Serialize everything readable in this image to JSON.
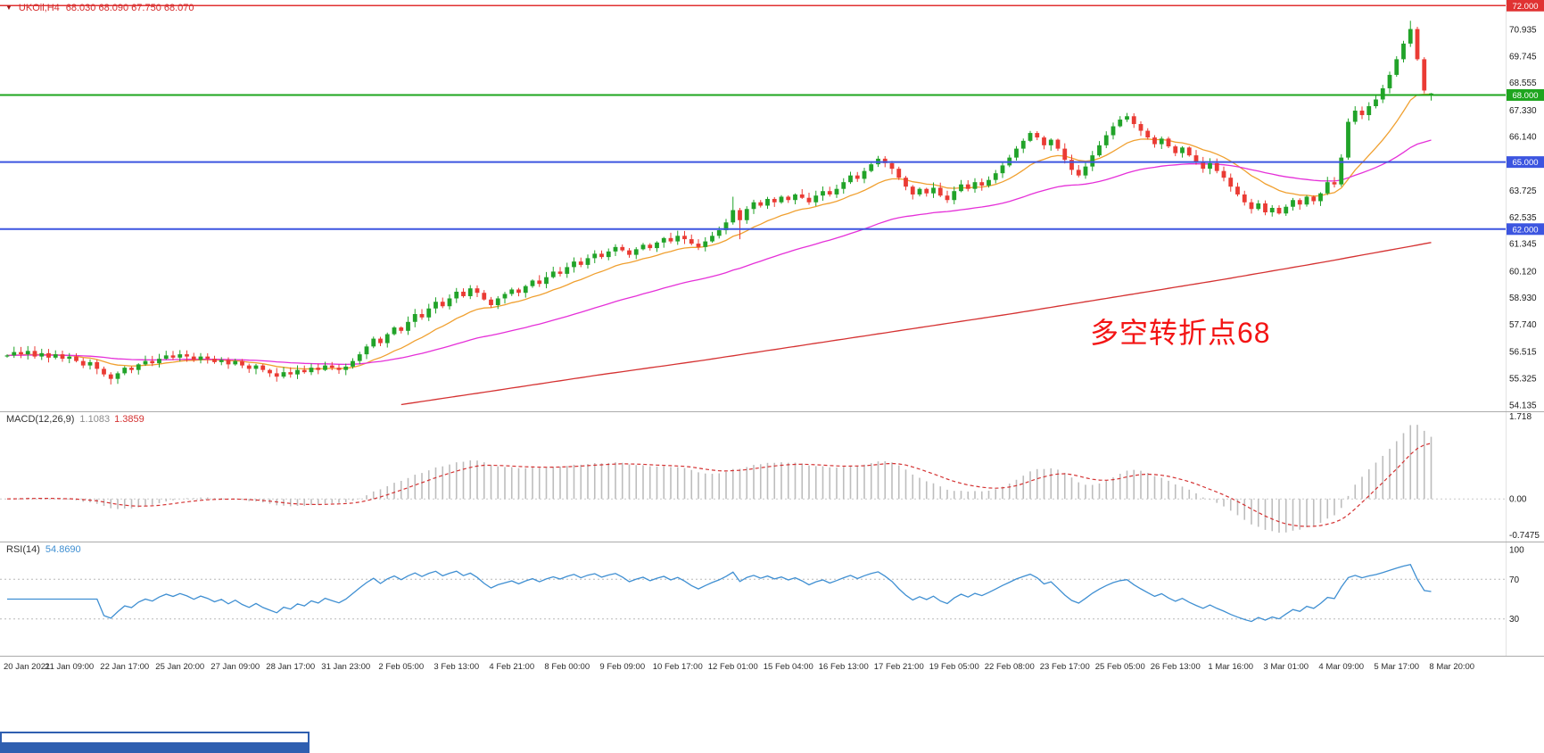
{
  "chart": {
    "title": {
      "marker": "▼",
      "symbol": "UKOil,H4",
      "values": "68.030 68.090 67.750 68.070"
    },
    "annotation": {
      "text": "多空转折点68",
      "color": "#f31414"
    }
  },
  "macd_panel": {
    "label": "MACD(12,26,9)",
    "value_main": "1.1083",
    "value_signal": "1.3859"
  },
  "rsi_panel": {
    "label": "RSI(14)",
    "value": "54.8690"
  },
  "chart_data": {
    "type": "candlestick",
    "symbol": "UKOil",
    "timeframe": "H4",
    "x_labels": [
      "20 Jan 2021",
      "21 Jan 09:00",
      "22 Jan 17:00",
      "25 Jan 20:00",
      "27 Jan 09:00",
      "28 Jan 17:00",
      "31 Jan 23:00",
      "2 Feb 05:00",
      "3 Feb 13:00",
      "4 Feb 21:00",
      "8 Feb 00:00",
      "9 Feb 09:00",
      "10 Feb 17:00",
      "12 Feb 01:00",
      "15 Feb 04:00",
      "16 Feb 13:00",
      "17 Feb 21:00",
      "19 Feb 05:00",
      "22 Feb 08:00",
      "23 Feb 17:00",
      "25 Feb 05:00",
      "26 Feb 13:00",
      "1 Mar 16:00",
      "3 Mar 01:00",
      "4 Mar 09:00",
      "5 Mar 17:00",
      "8 Mar 20:00"
    ],
    "bars_per_label": 8,
    "first_label_bar": 1,
    "price_axis": {
      "range": {
        "min": 53.85,
        "max": 72.05
      },
      "ticks": [
        "70.935",
        "69.745",
        "68.555",
        "67.330",
        "66.140",
        "63.725",
        "62.535",
        "61.345",
        "60.120",
        "58.930",
        "57.740",
        "56.515",
        "55.325",
        "54.135"
      ],
      "lines": [
        {
          "price": 72.0,
          "label": "72.000",
          "color": "#e03232",
          "width": 1.5
        },
        {
          "price": 68.0,
          "label": "68.000",
          "color": "#1ea51e",
          "width": 2
        },
        {
          "price": 65.0,
          "label": "65.000",
          "color": "#3c55e0",
          "width": 2
        },
        {
          "price": 62.0,
          "label": "62.000",
          "color": "#3c55e0",
          "width": 2
        }
      ]
    },
    "candles": {
      "first_open": 56.3,
      "up_color": "#21a329",
      "down_color": "#ea3b34",
      "wick_base": 0.05,
      "wick_var": 0.2,
      "closes": [
        56.35,
        56.5,
        56.4,
        56.55,
        56.3,
        56.45,
        56.25,
        56.4,
        56.2,
        56.3,
        56.1,
        55.9,
        56.05,
        55.75,
        55.5,
        55.3,
        55.55,
        55.8,
        55.7,
        55.95,
        56.1,
        56.0,
        56.2,
        56.35,
        56.25,
        56.4,
        56.3,
        56.15,
        56.3,
        56.2,
        56.05,
        56.15,
        55.95,
        56.1,
        55.9,
        55.75,
        55.9,
        55.7,
        55.55,
        55.4,
        55.6,
        55.5,
        55.7,
        55.6,
        55.8,
        55.7,
        55.9,
        55.8,
        55.7,
        55.85,
        56.1,
        56.4,
        56.75,
        57.1,
        56.9,
        57.3,
        57.6,
        57.45,
        57.85,
        58.2,
        58.05,
        58.45,
        58.75,
        58.55,
        58.9,
        59.2,
        59.0,
        59.35,
        59.15,
        58.85,
        58.6,
        58.9,
        59.1,
        59.3,
        59.15,
        59.45,
        59.7,
        59.55,
        59.85,
        60.1,
        60.0,
        60.3,
        60.55,
        60.4,
        60.7,
        60.9,
        60.75,
        61.0,
        61.2,
        61.05,
        60.85,
        61.1,
        61.3,
        61.15,
        61.4,
        61.6,
        61.45,
        61.7,
        61.55,
        61.35,
        61.2,
        61.45,
        61.7,
        61.95,
        62.3,
        62.85,
        62.4,
        62.9,
        63.2,
        63.05,
        63.35,
        63.2,
        63.45,
        63.3,
        63.55,
        63.4,
        63.2,
        63.5,
        63.7,
        63.55,
        63.8,
        64.1,
        64.4,
        64.25,
        64.6,
        64.9,
        65.15,
        64.95,
        64.7,
        64.3,
        63.9,
        63.55,
        63.8,
        63.6,
        63.85,
        63.5,
        63.3,
        63.7,
        64.0,
        63.8,
        64.1,
        63.95,
        64.2,
        64.5,
        64.85,
        65.2,
        65.6,
        65.95,
        66.3,
        66.1,
        65.75,
        66.0,
        65.6,
        65.1,
        64.65,
        64.4,
        64.8,
        65.3,
        65.75,
        66.2,
        66.6,
        66.9,
        67.05,
        66.7,
        66.4,
        66.1,
        65.8,
        66.05,
        65.7,
        65.4,
        65.65,
        65.3,
        65.0,
        64.7,
        64.95,
        64.6,
        64.3,
        63.9,
        63.55,
        63.2,
        62.9,
        63.15,
        62.75,
        62.95,
        62.7,
        63.0,
        63.3,
        63.1,
        63.45,
        63.25,
        63.6,
        64.1,
        64.0,
        65.2,
        66.8,
        67.3,
        67.1,
        67.5,
        67.8,
        68.3,
        68.9,
        69.6,
        70.3,
        70.95,
        69.6,
        68.2,
        68.07
      ],
      "overrides": {
        "15": [
          55.5,
          55.6,
          55.05,
          55.3
        ],
        "105": [
          62.3,
          63.45,
          62.2,
          62.85
        ],
        "106": [
          62.85,
          62.95,
          61.55,
          62.4
        ],
        "193": [
          64.0,
          65.35,
          63.9,
          65.2
        ],
        "194": [
          65.2,
          66.95,
          65.1,
          66.8
        ],
        "203": [
          70.3,
          71.32,
          70.15,
          70.95
        ],
        "206": [
          68.03,
          68.09,
          67.75,
          68.07
        ]
      }
    },
    "moving_averages": [
      {
        "name": "ma-fast-orange",
        "type": "ema",
        "period": 14,
        "color": "#f0a030"
      },
      {
        "name": "ma-mid-magenta",
        "type": "ema",
        "period": 50,
        "color": "#e530d8"
      },
      {
        "name": "ma-slow-red",
        "type": "points",
        "color": "#d53232",
        "points": [
          [
            57,
            54.15
          ],
          [
            70,
            54.75
          ],
          [
            85,
            55.45
          ],
          [
            100,
            56.1
          ],
          [
            115,
            56.8
          ],
          [
            130,
            57.5
          ],
          [
            145,
            58.2
          ],
          [
            160,
            58.95
          ],
          [
            175,
            59.7
          ],
          [
            190,
            60.5
          ],
          [
            206,
            61.4
          ]
        ]
      }
    ],
    "macd": {
      "fast": 12,
      "slow": 26,
      "signal": 9,
      "current_macd": 1.1083,
      "current_signal": 1.3859,
      "range": {
        "min": -0.85,
        "max": 1.75
      },
      "ticks": [
        {
          "v": 1.718,
          "label": "1.718"
        },
        {
          "v": 0,
          "label": "0.00"
        },
        {
          "v": -0.7475,
          "label": "-0.7475"
        }
      ],
      "hist_color": "#bdbdbd",
      "signal_color": "#d43232"
    },
    "rsi": {
      "period": 14,
      "current": 54.869,
      "range": {
        "min": 0,
        "max": 100
      },
      "ticks": [
        {
          "v": 100,
          "label": "100"
        },
        {
          "v": 70,
          "label": "70"
        },
        {
          "v": 30,
          "label": "30"
        }
      ],
      "levels": [
        70,
        30
      ],
      "color": "#3f8fd2"
    }
  }
}
